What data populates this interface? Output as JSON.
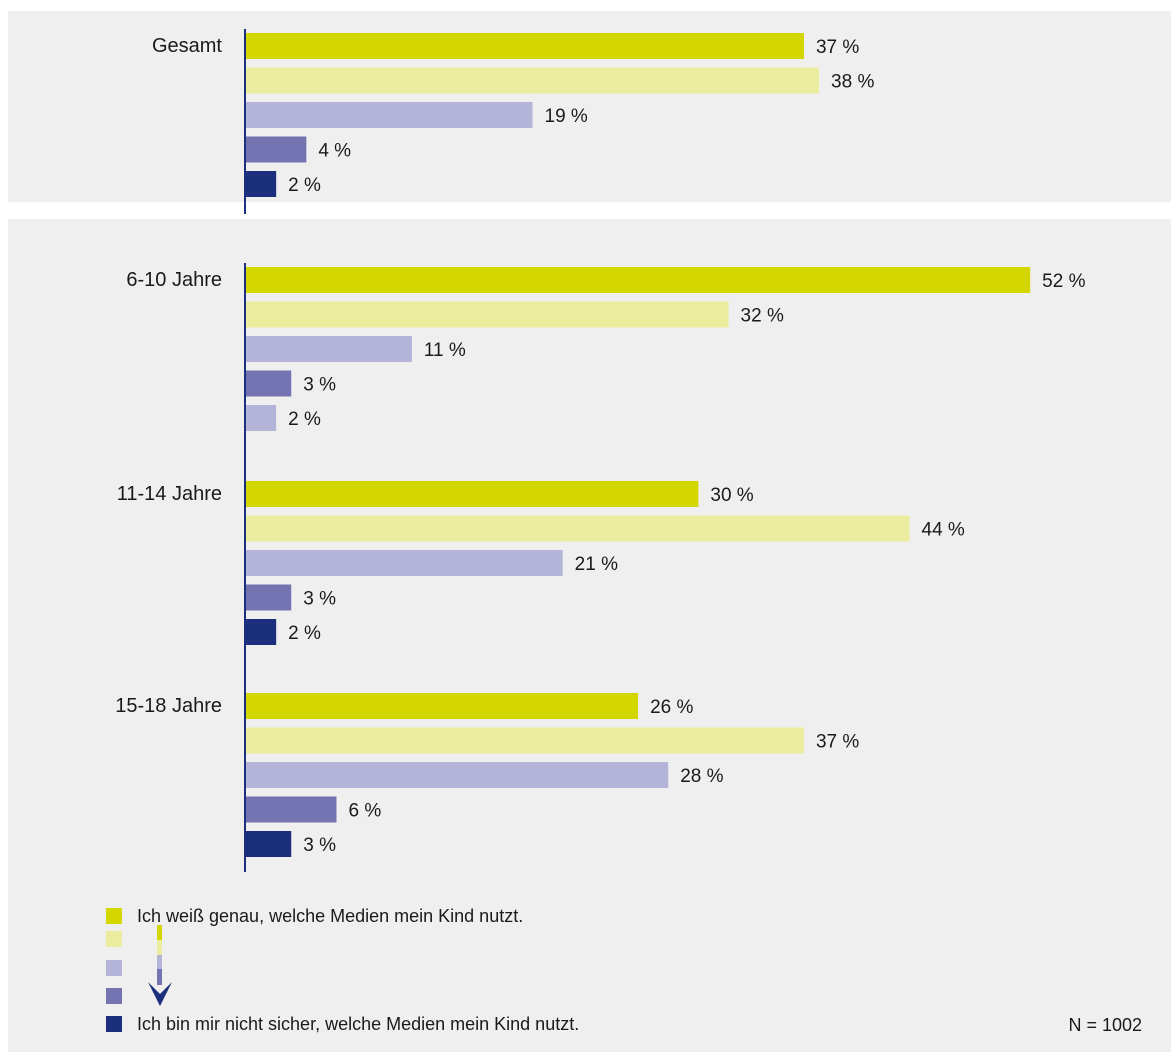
{
  "chart_data": {
    "type": "bar",
    "orientation": "horizontal",
    "value_suffix": "%",
    "series": [
      {
        "name": "Ich weiß genau, welche Medien mein Kind nutzt.",
        "color": "#d4d600"
      },
      {
        "name": "",
        "color": "#ecec9f"
      },
      {
        "name": "",
        "color": "#b4b4d8"
      },
      {
        "name": "",
        "color": "#7474b2"
      },
      {
        "name": "Ich bin mir nicht sicher, welche Medien mein Kind nutzt.",
        "color": "#1b2f7c"
      }
    ],
    "groups": [
      {
        "label": "Gesamt",
        "values": [
          37,
          38,
          19,
          4,
          2
        ],
        "value_labels": [
          "37 %",
          "38 %",
          "19 %",
          "4 %",
          "2 %"
        ],
        "colors": [
          "#d4d600",
          "#ecec9f",
          "#b4b4d8",
          "#7474b2",
          "#1b2f7c"
        ]
      },
      {
        "label": "6-10 Jahre",
        "values": [
          52,
          32,
          11,
          3,
          2
        ],
        "value_labels": [
          "52 %",
          "32 %",
          "11 %",
          "3 %",
          "2 %"
        ],
        "colors": [
          "#d4d600",
          "#ecec9f",
          "#b4b4d8",
          "#7474b2",
          "#b4b4d8"
        ]
      },
      {
        "label": "11-14 Jahre",
        "values": [
          30,
          44,
          21,
          3,
          2
        ],
        "value_labels": [
          "30 %",
          "44 %",
          "21 %",
          "3 %",
          "2 %"
        ],
        "colors": [
          "#d4d600",
          "#ecec9f",
          "#b4b4d8",
          "#7474b2",
          "#1b2f7c"
        ]
      },
      {
        "label": "15-18 Jahre",
        "values": [
          26,
          37,
          28,
          6,
          3
        ],
        "value_labels": [
          "26 %",
          "37 %",
          "28 %",
          "6 %",
          "3 %"
        ],
        "colors": [
          "#d4d600",
          "#ecec9f",
          "#b4b4d8",
          "#7474b2",
          "#1b2f7c"
        ]
      }
    ],
    "xlim": [
      0,
      53
    ],
    "grid": false,
    "legend_position": "bottom-left",
    "note": "N = 1002"
  },
  "colors": {
    "axis": "#1b2f7c",
    "arrow": "#1b2f7c",
    "panel_background": "#efefef"
  }
}
